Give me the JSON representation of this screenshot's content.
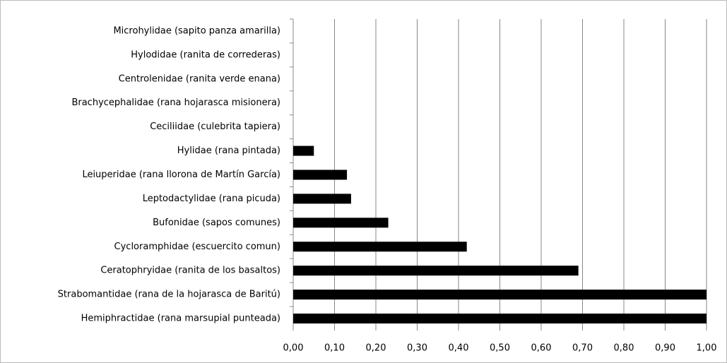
{
  "chart_data": {
    "type": "barh",
    "categories": [
      "Microhylidae (sapito panza amarilla)",
      "Hylodidae (ranita de correderas)",
      "Centrolenidae (ranita verde enana)",
      "Brachycephalidae (rana hojarasca misionera)",
      "Ceciliidae (culebrita tapiera)",
      "Hylidae (rana pintada)",
      "Leiuperidae (rana llorona de Martín García)",
      "Leptodactylidae (rana picuda)",
      "Bufonidae (sapos comunes)",
      "Cycloramphidae (escuercito comun)",
      "Ceratophryidae (ranita de los basaltos)",
      "Strabomantidae (rana de la hojarasca de Baritú)",
      "Hemiphractidae (rana marsupial punteada)"
    ],
    "values": [
      0,
      0,
      0,
      0,
      0,
      0.05,
      0.13,
      0.14,
      0.23,
      0.42,
      0.69,
      1.0,
      1.0
    ],
    "color": "#000000",
    "xlim": [
      0,
      1
    ],
    "xticks": [
      {
        "value": 0,
        "label": "0,00"
      },
      {
        "value": 0.1,
        "label": "0,10"
      },
      {
        "value": 0.2,
        "label": "0,20"
      },
      {
        "value": 0.3,
        "label": "0,30"
      },
      {
        "value": 0.4,
        "label": "0,40"
      },
      {
        "value": 0.5,
        "label": "0,50"
      },
      {
        "value": 0.6,
        "label": "0,60"
      },
      {
        "value": 0.7,
        "label": "0,70"
      },
      {
        "value": 0.8,
        "label": "0,80"
      },
      {
        "value": 0.9,
        "label": "0,90"
      },
      {
        "value": 1.0,
        "label": "1,00"
      }
    ],
    "grid": true
  }
}
